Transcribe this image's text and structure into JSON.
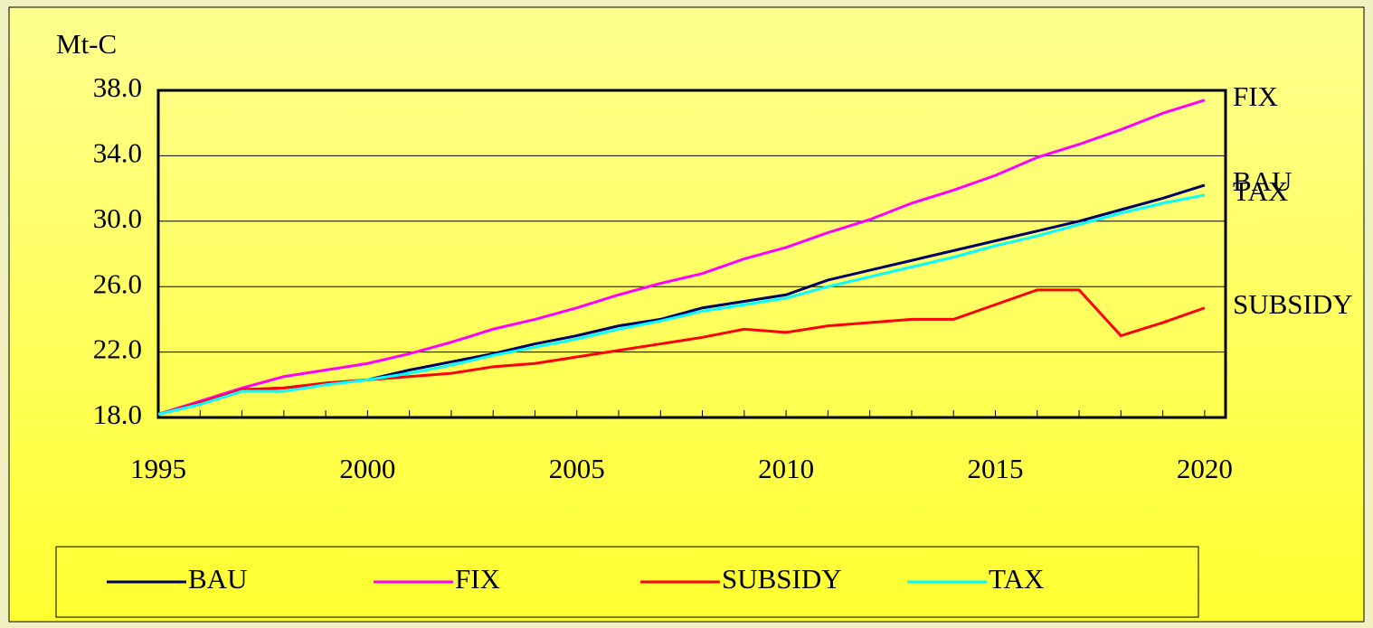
{
  "chart_data": {
    "type": "line",
    "ylabel": "Mt-C",
    "x": [
      1995,
      1996,
      1997,
      1998,
      1999,
      2000,
      2001,
      2002,
      2003,
      2004,
      2005,
      2006,
      2007,
      2008,
      2009,
      2010,
      2011,
      2012,
      2013,
      2014,
      2015,
      2016,
      2017,
      2018,
      2019,
      2020
    ],
    "xlim": [
      1995,
      2020.5
    ],
    "xticks": [
      1995,
      2000,
      2005,
      2010,
      2015,
      2020
    ],
    "ylim": [
      18,
      38
    ],
    "yticks": [
      {
        "value": 18,
        "label": "18.0"
      },
      {
        "value": 22,
        "label": "22.0"
      },
      {
        "value": 26,
        "label": "26.0"
      },
      {
        "value": 30,
        "label": "30.0"
      },
      {
        "value": 34,
        "label": "34.0"
      },
      {
        "value": 38,
        "label": "38.0"
      }
    ],
    "grid": true,
    "legend": "bottom",
    "series": [
      {
        "name": "BAU",
        "color": "#000066",
        "values": [
          18.2,
          18.9,
          19.7,
          19.8,
          20.1,
          20.3,
          20.9,
          21.4,
          21.9,
          22.5,
          23.0,
          23.6,
          24.0,
          24.7,
          25.1,
          25.5,
          26.4,
          27.0,
          27.6,
          28.2,
          28.8,
          29.4,
          30.0,
          30.7,
          31.4,
          32.2
        ]
      },
      {
        "name": "FIX",
        "color": "#ff00ff",
        "values": [
          18.2,
          19.0,
          19.8,
          20.5,
          20.9,
          21.3,
          21.9,
          22.6,
          23.4,
          24.0,
          24.7,
          25.5,
          26.2,
          26.8,
          27.7,
          28.4,
          29.3,
          30.1,
          31.1,
          31.9,
          32.8,
          33.9,
          34.7,
          35.6,
          36.6,
          37.4
        ]
      },
      {
        "name": "SUBSIDY",
        "color": "#ff0000",
        "values": [
          18.2,
          18.9,
          19.7,
          19.8,
          20.1,
          20.3,
          20.5,
          20.7,
          21.1,
          21.3,
          21.7,
          22.1,
          22.5,
          22.9,
          23.4,
          23.2,
          23.6,
          23.8,
          24.0,
          24.0,
          24.9,
          25.8,
          25.8,
          23.0,
          23.8,
          24.7
        ]
      },
      {
        "name": "TAX",
        "color": "#00ffff",
        "values": [
          18.2,
          18.8,
          19.6,
          19.6,
          20.0,
          20.3,
          20.7,
          21.2,
          21.8,
          22.3,
          22.8,
          23.4,
          23.9,
          24.5,
          24.9,
          25.3,
          26.0,
          26.6,
          27.2,
          27.8,
          28.5,
          29.1,
          29.8,
          30.5,
          31.1,
          31.6
        ]
      }
    ]
  }
}
